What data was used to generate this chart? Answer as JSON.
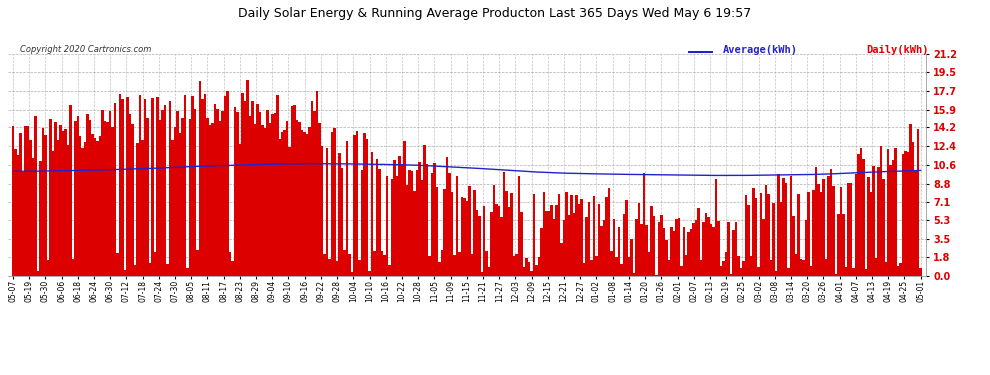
{
  "title": "Daily Solar Energy & Running Average Producton Last 365 Days Wed May 6 19:57",
  "copyright_text": "Copyright 2020 Cartronics.com",
  "legend_average": "Average(kWh)",
  "legend_daily": "Daily(kWh)",
  "yticks": [
    0.0,
    1.8,
    3.5,
    5.3,
    7.1,
    8.8,
    10.6,
    12.4,
    14.2,
    15.9,
    17.7,
    19.5,
    21.2
  ],
  "ymax": 21.2,
  "ymin": 0.0,
  "bar_color": "#dd0000",
  "avg_color": "#2222cc",
  "background_color": "#ffffff",
  "plot_bg_color": "#ffffff",
  "grid_color": "#999999",
  "title_color": "#000000",
  "x_labels": [
    "05-07",
    "05-19",
    "05-30",
    "06-06",
    "06-18",
    "06-24",
    "06-30",
    "07-12",
    "07-18",
    "07-24",
    "07-30",
    "08-05",
    "08-11",
    "08-17",
    "08-23",
    "08-29",
    "09-04",
    "09-10",
    "09-16",
    "09-22",
    "09-28",
    "10-04",
    "10-10",
    "10-16",
    "10-22",
    "10-28",
    "11-05",
    "11-09",
    "11-15",
    "11-21",
    "11-27",
    "12-03",
    "12-09",
    "12-15",
    "12-21",
    "12-27",
    "01-02",
    "01-08",
    "01-14",
    "01-20",
    "01-26",
    "02-01",
    "02-07",
    "02-13",
    "02-19",
    "02-25",
    "03-02",
    "03-08",
    "03-14",
    "03-20",
    "03-26",
    "04-01",
    "04-07",
    "04-13",
    "04-19",
    "04-25",
    "05-01"
  ],
  "num_bars": 365,
  "avg_line_values": [
    10.0,
    10.0,
    10.02,
    10.05,
    10.08,
    10.1,
    10.15,
    10.2,
    10.25,
    10.3,
    10.38,
    10.45,
    10.5,
    10.55,
    10.6,
    10.65,
    10.68,
    10.7,
    10.72,
    10.72,
    10.72,
    10.7,
    10.68,
    10.65,
    10.62,
    10.58,
    10.5,
    10.42,
    10.35,
    10.25,
    10.15,
    10.05,
    9.95,
    9.88,
    9.82,
    9.78,
    9.75,
    9.72,
    9.7,
    9.68,
    9.65,
    9.63,
    9.61,
    9.6,
    9.6,
    9.6,
    9.62,
    9.63,
    9.65,
    9.68,
    9.72,
    9.78,
    9.85,
    9.92,
    9.98,
    10.03,
    10.08
  ]
}
